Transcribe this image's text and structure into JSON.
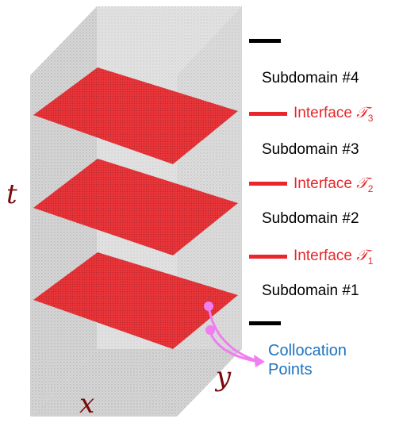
{
  "diagram": {
    "axes": {
      "t": "t",
      "x": "x",
      "y": "y"
    },
    "subdomains": [
      "Subdomain #4",
      "Subdomain #3",
      "Subdomain #2",
      "Subdomain #1"
    ],
    "interfaces": [
      {
        "label": "Interface",
        "symbol": "𝒯",
        "index": "3"
      },
      {
        "label": "Interface",
        "symbol": "𝒯",
        "index": "2"
      },
      {
        "label": "Interface",
        "symbol": "𝒯",
        "index": "1"
      }
    ],
    "collocation": {
      "line1": "Collocation",
      "line2": "Points"
    },
    "colors": {
      "interface": "#e8262b",
      "points": "#9a9a9a",
      "collocation": "#1e73be",
      "arrow": "#f07ef0",
      "axis_label": "#7a0a0a"
    }
  }
}
